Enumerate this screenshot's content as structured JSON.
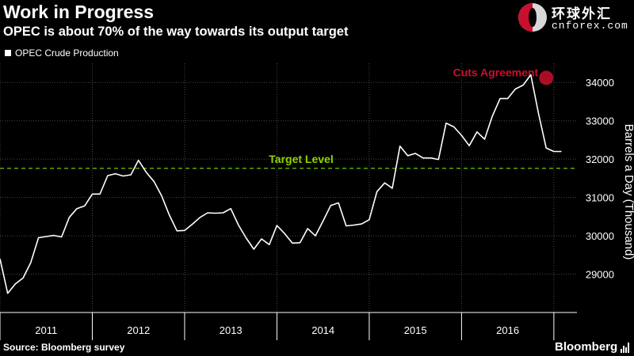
{
  "header": {
    "title": "Work in Progress",
    "subtitle": "OPEC is about 70% of the way towards its output target"
  },
  "logo": {
    "chinese_text": "环球外汇",
    "domain_text": "cnforex.com"
  },
  "footer": {
    "source": "Source: Bloomberg survey",
    "brand": "Bloomberg"
  },
  "colors": {
    "background": "#000000",
    "line": "#ffffff",
    "target_line": "#66cc00",
    "cuts_marker": "#c8102e"
  },
  "chart_data": {
    "type": "line",
    "title": "Work in Progress",
    "subtitle": "OPEC is about 70% of the way towards its output target",
    "ylabel": "Barrels a Day (Thousand)",
    "ylim": [
      28000,
      34500
    ],
    "yticks": [
      29000,
      30000,
      31000,
      32000,
      33000,
      34000
    ],
    "ytick_labels": [
      "29000",
      "30000",
      "31000",
      "32000",
      "33000",
      "34000"
    ],
    "x_categories": [
      "2011",
      "2012",
      "2013",
      "2014",
      "2015",
      "2016"
    ],
    "xlim": [
      2011.0,
      2017.25
    ],
    "grid": true,
    "legend": {
      "position": "top-left",
      "entries": [
        "OPEC Crude Production"
      ]
    },
    "series": [
      {
        "name": "OPEC Crude Production",
        "x": [
          2011.0,
          2011.083,
          2011.167,
          2011.25,
          2011.333,
          2011.417,
          2011.5,
          2011.583,
          2011.667,
          2011.75,
          2011.833,
          2011.917,
          2012.0,
          2012.083,
          2012.167,
          2012.25,
          2012.333,
          2012.417,
          2012.5,
          2012.583,
          2012.667,
          2012.75,
          2012.833,
          2012.917,
          2013.0,
          2013.083,
          2013.167,
          2013.25,
          2013.333,
          2013.417,
          2013.5,
          2013.583,
          2013.667,
          2013.75,
          2013.833,
          2013.917,
          2014.0,
          2014.083,
          2014.167,
          2014.25,
          2014.333,
          2014.417,
          2014.5,
          2014.583,
          2014.667,
          2014.75,
          2014.833,
          2014.917,
          2015.0,
          2015.083,
          2015.167,
          2015.25,
          2015.333,
          2015.417,
          2015.5,
          2015.583,
          2015.667,
          2015.75,
          2015.833,
          2015.917,
          2016.0,
          2016.083,
          2016.167,
          2016.25,
          2016.333,
          2016.417,
          2016.5,
          2016.583,
          2016.667,
          2016.75,
          2016.833,
          2016.917,
          2017.0,
          2017.083
        ],
        "y": [
          29400,
          28500,
          28750,
          28900,
          29300,
          29950,
          29980,
          30010,
          29970,
          30480,
          30710,
          30780,
          31090,
          31090,
          31570,
          31620,
          31560,
          31590,
          31970,
          31660,
          31420,
          31050,
          30550,
          30130,
          30140,
          30300,
          30480,
          30600,
          30590,
          30600,
          30710,
          30280,
          29940,
          29650,
          29920,
          29770,
          30270,
          30060,
          29810,
          29820,
          30190,
          30000,
          30390,
          30790,
          30860,
          30260,
          30280,
          30310,
          30420,
          31150,
          31380,
          31240,
          32340,
          32090,
          32150,
          32030,
          32030,
          31990,
          32940,
          32840,
          32620,
          32350,
          32710,
          32520,
          33120,
          33580,
          33580,
          33830,
          33930,
          34200,
          33200,
          32290,
          32200,
          32200
        ]
      }
    ],
    "annotations": [
      {
        "text": "Target Level",
        "type": "horizontal-line",
        "y": 31760
      },
      {
        "text": "Cuts Agreement",
        "type": "point-marker",
        "x": 2016.917,
        "y": 34120
      }
    ]
  }
}
